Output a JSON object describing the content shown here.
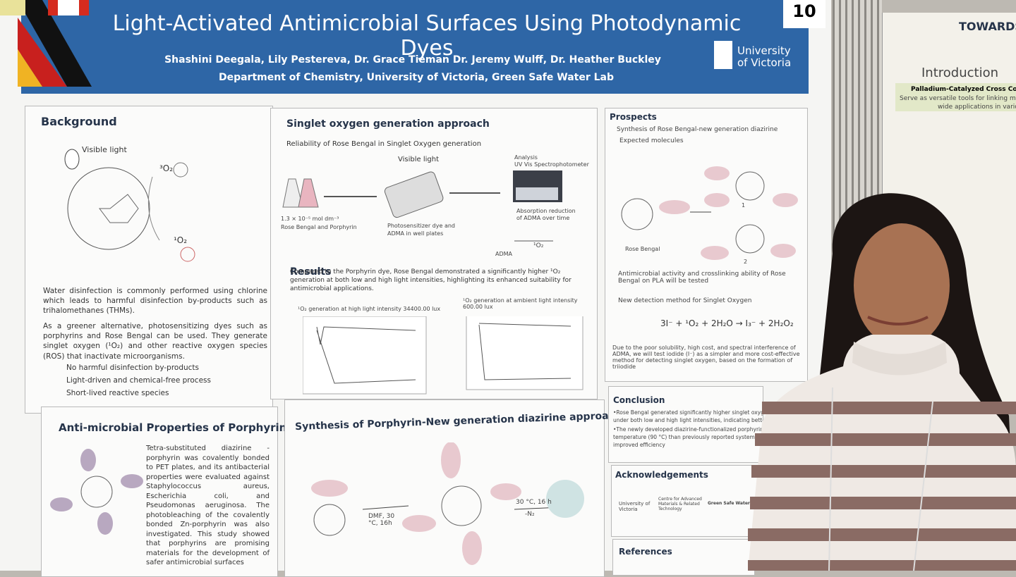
{
  "header": {
    "title": "Light-Activated Antimicrobial Surfaces Using Photodynamic Dyes",
    "authors": "Shashini Deegala, Lily Pestereva, Dr. Grace Tieman Dr. Jeremy Wulff, Dr. Heather Buckley",
    "department": "Department of Chemistry, University of Victoria, Green Safe Water Lab",
    "logo_line1": "University",
    "logo_line2": "of Victoria",
    "number": "10"
  },
  "background": {
    "heading": "Background",
    "light_label": "Visible light",
    "triplet": "³O₂",
    "singlet": "¹O₂",
    "paragraphs": [
      "Water disinfection is commonly performed using chlorine which leads to harmful disinfection by-products such as trihalomethanes (THMs).",
      "As a greener alternative, photosensitizing dyes such as porphyrins and Rose Bengal can be used. They generate singlet oxygen (¹O₂) and other reactive oxygen species (ROS) that inactivate microorganisms."
    ],
    "bullets": [
      "No harmful disinfection by-products",
      "Light-driven and chemical-free process",
      "Short-lived reactive species"
    ]
  },
  "antimicrobial": {
    "heading": "Anti-microbial Properties of Porphyrin",
    "text": "Tetra-substituted diazirine -porphyrin was covalently bonded to PET plates, and its antibacterial properties were evaluated against Staphylococcus aureus, Escherichia coli, and Pseudomonas aeruginosa. The photobleaching of the covalently bonded Zn-porphyrin was also investigated. This study showed that porphyrins are promising materials for the development of safer antimicrobial surfaces"
  },
  "singlet": {
    "heading": "Singlet oxygen generation approach",
    "subtitle": "Reliability of Rose Bengal in Singlet Oxygen generation",
    "light_label": "Visible light",
    "analysis": "Analysis",
    "instrument": "UV Vis Spectrophotometer",
    "concentration": "1.3 × 10⁻⁵ mol dm⁻³",
    "dyes": "Rose Bengal and Porphyrin",
    "plates1": "Photosensitizer dye and",
    "plates2": "ADMA in well plates",
    "absorb1": "Absorption reduction",
    "absorb2": "of ADMA over time",
    "adma": "ADMA",
    "product": "¹O₂"
  },
  "results": {
    "heading": "Results",
    "text": "Compared to the Porphyrin dye, Rose Bengal demonstrated a significantly higher ¹O₂ generation at both low and high light intensities, highlighting its enhanced suitability for antimicrobial applications.",
    "chart1": "¹O₂ generation at high light intensity 34400.00 lux",
    "chart2": "¹O₂ generation at ambient light intensity 600.00 lux"
  },
  "synthesis": {
    "heading": "Synthesis of Porphyrin-New generation diazirine approach",
    "cond1": "DMF, 30 °C, 16h",
    "cond2": "30 °C, 16 h",
    "cond3": "-N₂"
  },
  "prospects": {
    "heading": "Prospects",
    "item1": "Synthesis of Rose Bengal-new generation diazirine",
    "item1b": "Expected molecules",
    "rose": "Rose Bengal",
    "mol1": "1",
    "mol2": "2",
    "item2": "Antimicrobial activity and crosslinking ability of Rose Bengal on PLA will be tested",
    "item3": "New detection method for Singlet Oxygen",
    "equation": "3I⁻ + ¹O₂ + 2H₂O → I₃⁻ + 2H₂O₂",
    "text": "Due to the poor solubility, high cost, and spectral interference of ADMA, we will test iodide (I⁻) as a simpler and more cost-effective method for detecting singlet oxygen, based on the formation of triiodide"
  },
  "conclusion": {
    "heading": "Conclusion",
    "lines": [
      "•Rose Bengal generated significantly higher singlet oxygen (¹O₂) tha",
      "under both low and high light intensities, indicating better antim",
      "•The newly developed diazirine-functionalized porphyrin activat",
      "temperature (90 °C) than previously reported systems (120 °C),",
      "improved efficiency"
    ]
  },
  "acknowledgements": {
    "heading": "Acknowledgements",
    "uvic": "University of Victoria",
    "camtec": "Centre for Advanced Materials & Related Technology",
    "lab": "Green Safe Water Lab"
  },
  "references": {
    "heading": "References"
  },
  "neighbor": {
    "title": "TOWARDS",
    "heading": "Introduction",
    "subheading": "Palladium-Catalyzed Cross Coupling",
    "line1": "Serve as versatile tools for linking molecular",
    "line2": "wide applications in various field"
  }
}
